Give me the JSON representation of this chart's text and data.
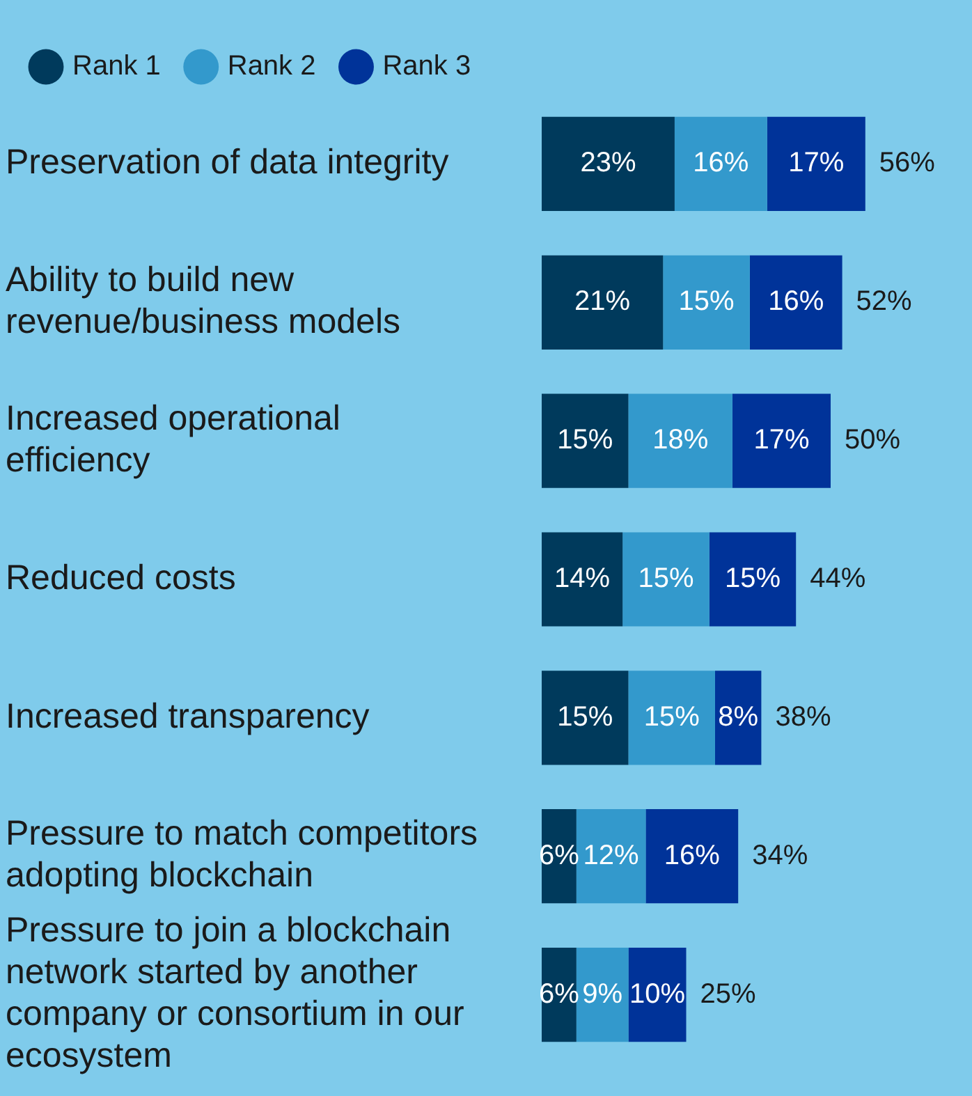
{
  "chart_data": {
    "type": "bar",
    "orientation": "horizontal",
    "stacked": true,
    "legend": "top left",
    "grid": false,
    "categories": [
      "Preservation of data integrity",
      "Ability to build new revenue/business models",
      "Increased operational efficiency",
      "Reduced costs",
      "Increased transparency",
      "Pressure to match competitors adopting blockchain",
      "Pressure to join a blockchain network started by another company or consortium in our ecosystem"
    ],
    "series": [
      {
        "name": "Rank 1",
        "color": "#003a5c",
        "values": [
          23,
          21,
          15,
          14,
          15,
          6,
          6
        ],
        "value_labels": [
          "23%",
          "21%",
          "15%",
          "14%",
          "15%",
          "6%",
          "6%"
        ]
      },
      {
        "name": "Rank 2",
        "color": "#3399cc",
        "values": [
          16,
          15,
          18,
          15,
          15,
          12,
          9
        ],
        "value_labels": [
          "16%",
          "15%",
          "18%",
          "15%",
          "15%",
          "12%",
          "9%"
        ]
      },
      {
        "name": "Rank 3",
        "color": "#003399",
        "values": [
          17,
          16,
          17,
          15,
          8,
          16,
          10
        ],
        "value_labels": [
          "17%",
          "16%",
          "17%",
          "15%",
          "8%",
          "16%",
          "10%"
        ]
      }
    ],
    "totals": [
      "56%",
      "52%",
      "50%",
      "44%",
      "38%",
      "34%",
      "25%"
    ]
  }
}
